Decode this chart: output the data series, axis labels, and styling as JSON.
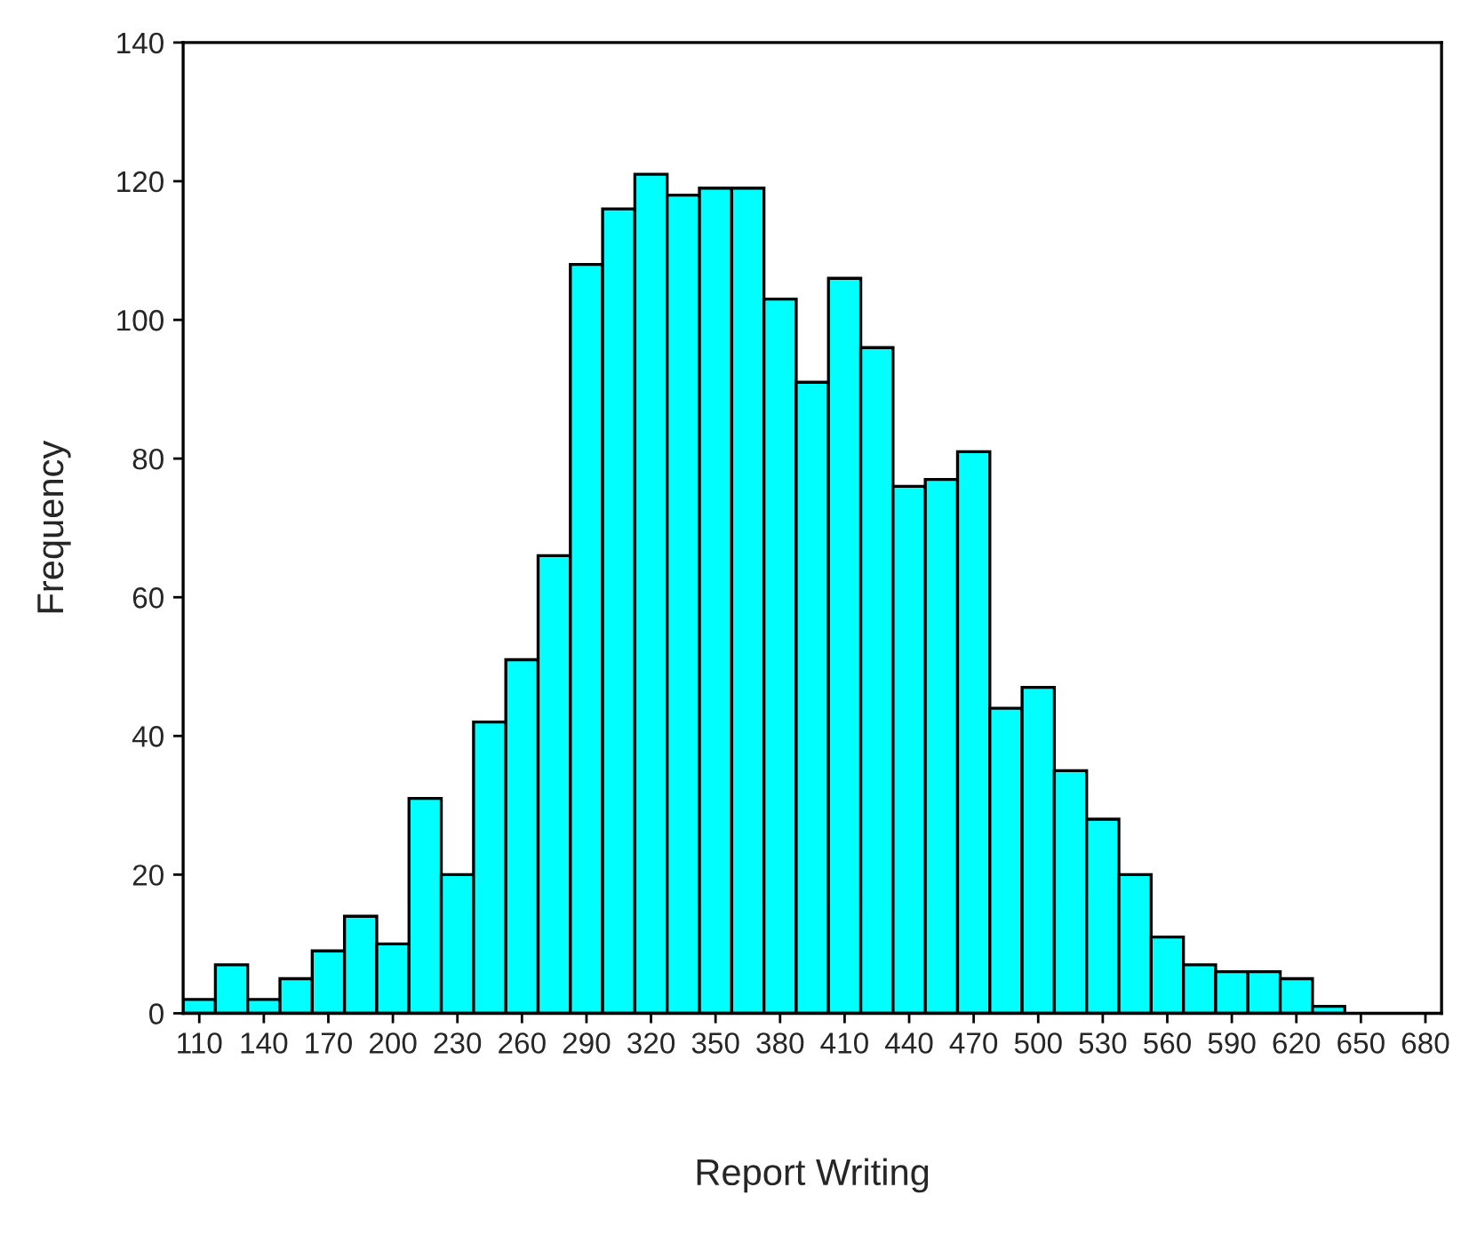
{
  "chart_data": {
    "type": "histogram",
    "xlabel": "Report Writing",
    "ylabel": "Frequency",
    "color": "#00ffff",
    "bins": [
      102.5,
      117.5,
      132.5,
      147.5,
      162.5,
      177.5,
      192.5,
      207.5,
      222.5,
      237.5,
      252.5,
      267.5,
      282.5,
      297.5,
      312.5,
      327.5,
      342.5,
      357.5,
      372.5,
      387.5,
      402.5,
      417.5,
      432.5,
      447.5,
      462.5,
      477.5,
      492.5,
      507.5,
      522.5,
      537.5,
      552.5,
      567.5,
      582.5,
      597.5,
      612.5,
      627.5,
      642.5
    ],
    "values": [
      2,
      7,
      2,
      5,
      9,
      14,
      10,
      31,
      20,
      42,
      51,
      66,
      108,
      116,
      121,
      118,
      119,
      119,
      103,
      91,
      106,
      96,
      76,
      77,
      81,
      44,
      47,
      35,
      28,
      20,
      11,
      7,
      6,
      6,
      5,
      1
    ],
    "xlim": [
      102.5,
      687.5
    ],
    "xticks": [
      110,
      140,
      170,
      200,
      230,
      260,
      290,
      320,
      350,
      380,
      410,
      440,
      470,
      500,
      530,
      560,
      590,
      620,
      650,
      680
    ],
    "ylim": [
      0,
      140
    ],
    "yticks": [
      0,
      20,
      40,
      60,
      80,
      100,
      120,
      140
    ],
    "grid": false
  }
}
